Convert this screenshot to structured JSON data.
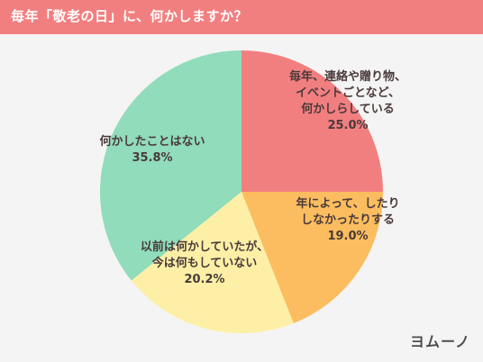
{
  "title": "毎年「敬老の日」に、何かしますか？",
  "logo": "ヨムーノ",
  "chart_data": {
    "type": "pie",
    "title": "毎年「敬老の日」に、何かしますか？",
    "slices": [
      {
        "label": [
          "毎年、連絡や贈り物、",
          "イベントごとなど、",
          "何かしらしている"
        ],
        "value": 25.0,
        "display": "25.0%",
        "color": "#f27f80"
      },
      {
        "label": [
          "年によって、したり",
          "しなかったりする"
        ],
        "value": 19.0,
        "display": "19.0%",
        "color": "#fbbd5f"
      },
      {
        "label": [
          "以前は何かしていたが、",
          "今は何もしていない"
        ],
        "value": 20.2,
        "display": "20.2%",
        "color": "#fdf0a6"
      },
      {
        "label": [
          "何かしたことはない"
        ],
        "value": 35.8,
        "display": "35.8%",
        "color": "#90dcbb"
      }
    ]
  }
}
